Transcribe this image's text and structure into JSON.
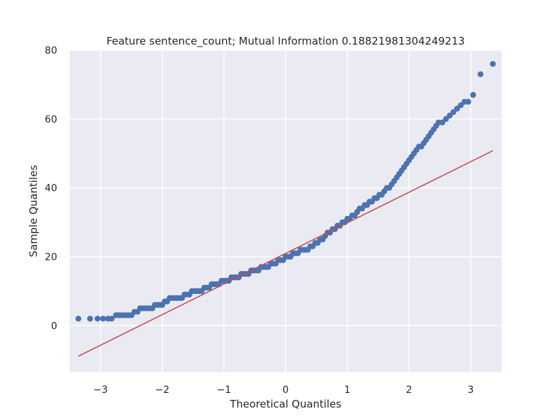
{
  "chart_data": {
    "type": "scatter",
    "title": "Feature sentence_count; Mutual Information 0.18821981304249213",
    "xlabel": "Theoretical Quantiles",
    "ylabel": "Sample Quantiles",
    "xlim": [
      -3.5,
      3.5
    ],
    "ylim": [
      -13.5,
      80
    ],
    "xticks": [
      -3,
      -2,
      -1,
      0,
      1,
      2,
      3
    ],
    "xtick_labels": [
      "−3",
      "−2",
      "−1",
      "0",
      "1",
      "2",
      "3"
    ],
    "yticks": [
      0,
      20,
      40,
      60,
      80
    ],
    "ytick_labels": [
      "0",
      "20",
      "40",
      "60",
      "80"
    ],
    "grid": true,
    "background": "#eaeaf2",
    "point_color": "#4c72b0",
    "line_color": "#c44e52",
    "points": [
      [
        -3.36,
        2
      ],
      [
        -3.17,
        2
      ],
      [
        -3.05,
        2
      ],
      [
        -2.96,
        2
      ],
      [
        -2.88,
        2
      ],
      [
        -2.82,
        2
      ],
      [
        -2.75,
        3
      ],
      [
        -2.7,
        3
      ],
      [
        -2.65,
        3
      ],
      [
        -2.6,
        3
      ],
      [
        -2.55,
        3
      ],
      [
        -2.5,
        3
      ],
      [
        -2.45,
        4
      ],
      [
        -2.4,
        4
      ],
      [
        -2.36,
        5
      ],
      [
        -2.32,
        5
      ],
      [
        -2.28,
        5
      ],
      [
        -2.24,
        5
      ],
      [
        -2.2,
        5
      ],
      [
        -2.16,
        5
      ],
      [
        -2.12,
        6
      ],
      [
        -2.08,
        6
      ],
      [
        -2.04,
        6
      ],
      [
        -2.0,
        6
      ],
      [
        -1.96,
        7
      ],
      [
        -1.92,
        7
      ],
      [
        -1.88,
        8
      ],
      [
        -1.84,
        8
      ],
      [
        -1.8,
        8
      ],
      [
        -1.76,
        8
      ],
      [
        -1.72,
        8
      ],
      [
        -1.68,
        8
      ],
      [
        -1.64,
        9
      ],
      [
        -1.6,
        9
      ],
      [
        -1.56,
        9
      ],
      [
        -1.52,
        10
      ],
      [
        -1.48,
        10
      ],
      [
        -1.44,
        10
      ],
      [
        -1.4,
        10
      ],
      [
        -1.36,
        10
      ],
      [
        -1.32,
        11
      ],
      [
        -1.28,
        11
      ],
      [
        -1.24,
        11
      ],
      [
        -1.2,
        12
      ],
      [
        -1.16,
        12
      ],
      [
        -1.12,
        12
      ],
      [
        -1.08,
        12
      ],
      [
        -1.04,
        13
      ],
      [
        -1.0,
        13
      ],
      [
        -0.96,
        13
      ],
      [
        -0.92,
        13
      ],
      [
        -0.88,
        14
      ],
      [
        -0.84,
        14
      ],
      [
        -0.8,
        14
      ],
      [
        -0.76,
        14
      ],
      [
        -0.72,
        15
      ],
      [
        -0.68,
        15
      ],
      [
        -0.64,
        15
      ],
      [
        -0.6,
        15
      ],
      [
        -0.56,
        16
      ],
      [
        -0.52,
        16
      ],
      [
        -0.48,
        16
      ],
      [
        -0.44,
        16
      ],
      [
        -0.4,
        17
      ],
      [
        -0.36,
        17
      ],
      [
        -0.32,
        17
      ],
      [
        -0.28,
        17
      ],
      [
        -0.24,
        18
      ],
      [
        -0.2,
        18
      ],
      [
        -0.16,
        18
      ],
      [
        -0.12,
        19
      ],
      [
        -0.08,
        19
      ],
      [
        -0.04,
        19
      ],
      [
        0.0,
        20
      ],
      [
        0.04,
        20
      ],
      [
        0.08,
        20
      ],
      [
        0.12,
        21
      ],
      [
        0.16,
        21
      ],
      [
        0.2,
        21
      ],
      [
        0.24,
        22
      ],
      [
        0.28,
        22
      ],
      [
        0.32,
        22
      ],
      [
        0.36,
        22
      ],
      [
        0.4,
        23
      ],
      [
        0.44,
        23
      ],
      [
        0.48,
        24
      ],
      [
        0.52,
        24
      ],
      [
        0.56,
        25
      ],
      [
        0.6,
        25
      ],
      [
        0.64,
        26
      ],
      [
        0.68,
        27
      ],
      [
        0.72,
        27
      ],
      [
        0.76,
        28
      ],
      [
        0.8,
        28
      ],
      [
        0.84,
        29
      ],
      [
        0.88,
        29
      ],
      [
        0.92,
        30
      ],
      [
        0.96,
        30
      ],
      [
        1.0,
        31
      ],
      [
        1.04,
        31
      ],
      [
        1.08,
        32
      ],
      [
        1.12,
        32
      ],
      [
        1.16,
        33
      ],
      [
        1.2,
        34
      ],
      [
        1.24,
        34
      ],
      [
        1.28,
        35
      ],
      [
        1.32,
        35
      ],
      [
        1.36,
        36
      ],
      [
        1.4,
        36
      ],
      [
        1.44,
        37
      ],
      [
        1.48,
        37
      ],
      [
        1.52,
        38
      ],
      [
        1.56,
        38
      ],
      [
        1.6,
        39
      ],
      [
        1.64,
        40
      ],
      [
        1.68,
        40
      ],
      [
        1.72,
        41
      ],
      [
        1.76,
        42
      ],
      [
        1.8,
        43
      ],
      [
        1.84,
        44
      ],
      [
        1.88,
        45
      ],
      [
        1.92,
        46
      ],
      [
        1.96,
        47
      ],
      [
        2.0,
        48
      ],
      [
        2.04,
        49
      ],
      [
        2.08,
        50
      ],
      [
        2.12,
        51
      ],
      [
        2.16,
        52
      ],
      [
        2.2,
        52
      ],
      [
        2.24,
        53
      ],
      [
        2.28,
        54
      ],
      [
        2.32,
        55
      ],
      [
        2.36,
        56
      ],
      [
        2.4,
        57
      ],
      [
        2.44,
        58
      ],
      [
        2.48,
        59
      ],
      [
        2.54,
        59
      ],
      [
        2.6,
        60
      ],
      [
        2.66,
        61
      ],
      [
        2.72,
        62
      ],
      [
        2.78,
        63
      ],
      [
        2.84,
        64
      ],
      [
        2.9,
        65
      ],
      [
        2.96,
        65
      ],
      [
        3.04,
        67
      ],
      [
        3.16,
        73
      ],
      [
        3.36,
        76
      ]
    ],
    "fit_line": {
      "x": [
        -3.36,
        3.36
      ],
      "y": [
        -8.9,
        50.8
      ]
    }
  }
}
